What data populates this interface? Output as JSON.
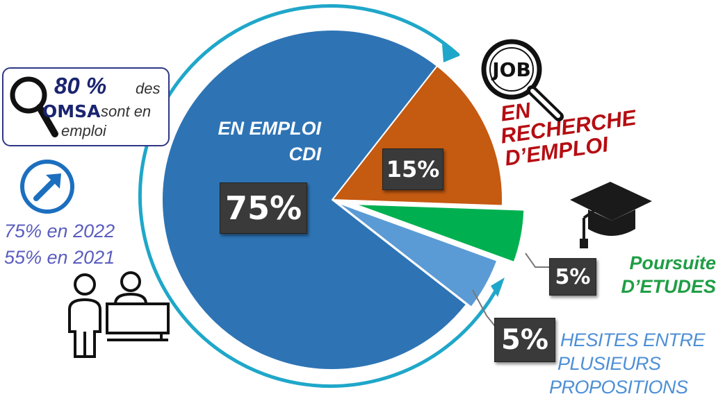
{
  "chart_data": {
    "type": "pie",
    "slices": [
      {
        "label": "EN EMPLOI CDI",
        "value": 75,
        "display": "75%",
        "color": "#2e74b5"
      },
      {
        "label": "EN RECHERCHE D'EMPLOI",
        "value": 15,
        "display": "15%",
        "color": "#c55a11"
      },
      {
        "label": "Poursuite D'ETUDES",
        "value": 5,
        "display": "5%",
        "color": "#00b050"
      },
      {
        "label": "HESITES ENTRE PLUSIEURS PROPOSITIONS",
        "value": 5,
        "display": "5%",
        "color": "#5b9bd5"
      }
    ],
    "slice_labels": {
      "emploi": [
        "EN EMPLOI",
        "CDI"
      ],
      "recherche": [
        "EN",
        "RECHERCHE",
        "D’EMPLOI"
      ],
      "etudes": [
        "Poursuite",
        "D’ETUDES"
      ],
      "hesites": [
        "HESITES ENTRE",
        "PLUSIEURS",
        "PROPOSITIONS"
      ]
    },
    "arrow_color": "#1fa7c9"
  },
  "stat_box": {
    "pct": "80 %",
    "des": "des",
    "omsa": "OMSA",
    "sont": "sont en",
    "emploi": "emploi",
    "border_color": "#2e3784"
  },
  "trend": {
    "line1": "75% en 2022",
    "line2": "55% en 2021",
    "color": "#5a5dbf",
    "icon": "trend-up-arrow-icon"
  },
  "icons": {
    "job": "job-magnifier-icon",
    "grad": "graduation-cap-icon",
    "search": "magnifier-icon",
    "people": "reception-desk-people-icon"
  },
  "job_badge": "JOB"
}
